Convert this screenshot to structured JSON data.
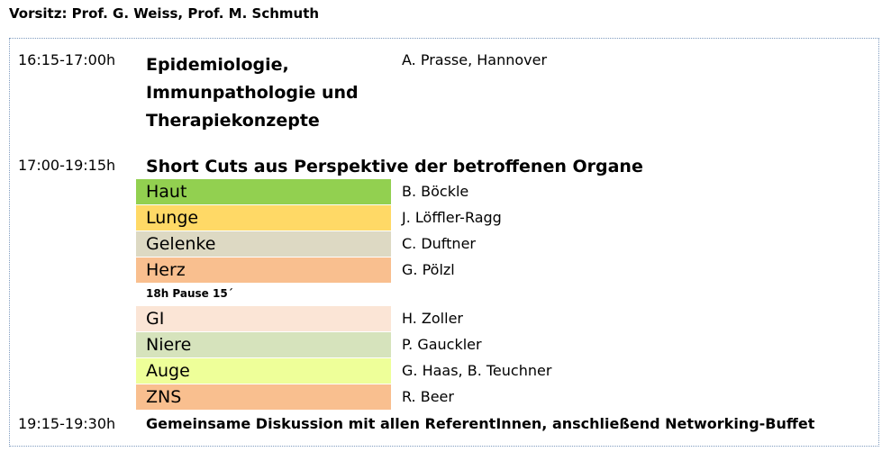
{
  "chair": "Vorsitz: Prof. G. Weiss, Prof. M. Schmuth",
  "session1": {
    "time": "16:15-17:00h",
    "title": "Epidemiologie, Immunpathologie und Therapiekonzepte",
    "speaker": "A. Prasse, Hannover"
  },
  "session2": {
    "time": "17:00-19:15h",
    "title": "Short Cuts aus Perspektive der betroffenen Organe",
    "organs": [
      {
        "label": "Haut",
        "speaker": "B. Böckle",
        "color": "#92d050"
      },
      {
        "label": "Lunge",
        "speaker": "J. Löffler-Ragg",
        "color": "#ffd966"
      },
      {
        "label": "Gelenke",
        "speaker": "C. Duftner",
        "color": "#ddd9c3"
      },
      {
        "label": "Herz",
        "speaker": "G. Pölzl",
        "color": "#f9bf8f"
      },
      {
        "label": "GI",
        "speaker": "H. Zoller",
        "color": "#fbe5d6"
      },
      {
        "label": "Niere",
        "speaker": "P. Gauckler",
        "color": "#d6e3bc"
      },
      {
        "label": "Auge",
        "speaker": "G. Haas, B. Teuchner",
        "color": "#eeff99"
      },
      {
        "label": "ZNS",
        "speaker": "R. Beer",
        "color": "#f9bf8f"
      }
    ],
    "pause": "18h  Pause 15´"
  },
  "session3": {
    "time": "19:15-19:30h",
    "title": "Gemeinsame Diskussion mit allen ReferentInnen, anschließend Networking-Buffet"
  }
}
